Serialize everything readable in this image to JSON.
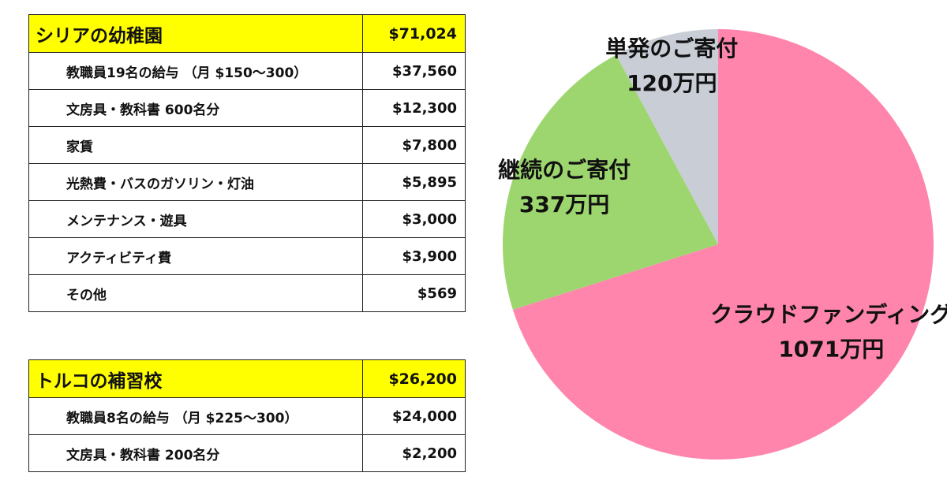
{
  "tables": [
    {
      "title": "シリアの幼稚園",
      "total": "$71,024",
      "highlight_color": "#ffff00",
      "rows": [
        {
          "label": "教職員19名の給与 （月 $150～300）",
          "amount": "$37,560"
        },
        {
          "label": "文房具・教科書 600名分",
          "amount": "$12,300"
        },
        {
          "label": "家賃",
          "amount": "$7,800"
        },
        {
          "label": "光熱費・バスのガソリン・灯油",
          "amount": "$5,895"
        },
        {
          "label": "メンテナンス・遊具",
          "amount": "$3,000"
        },
        {
          "label": "アクティビティ費",
          "amount": "$3,900"
        },
        {
          "label": "その他",
          "amount": "$569"
        }
      ]
    },
    {
      "title": "トルコの補習校",
      "total": "$26,200",
      "highlight_color": "#ffff00",
      "rows": [
        {
          "label": "教職員8名の給与 （月 $225～300）",
          "amount": "$24,000"
        },
        {
          "label": "文房具・教科書 200名分",
          "amount": "$2,200"
        }
      ]
    }
  ],
  "chart_data": {
    "type": "pie",
    "start_angle": "12 o'clock",
    "direction": "clockwise",
    "slices": [
      {
        "name": "クラウドファンディング",
        "value_label": "1071万円",
        "value": 1071,
        "color": "#ff85ad"
      },
      {
        "name": "継続のご寄付",
        "value_label": "337万円",
        "value": 337,
        "color": "#9dd66e"
      },
      {
        "name": "単発のご寄付",
        "value_label": "120万円",
        "value": 120,
        "color": "#c8cdd6"
      }
    ]
  }
}
